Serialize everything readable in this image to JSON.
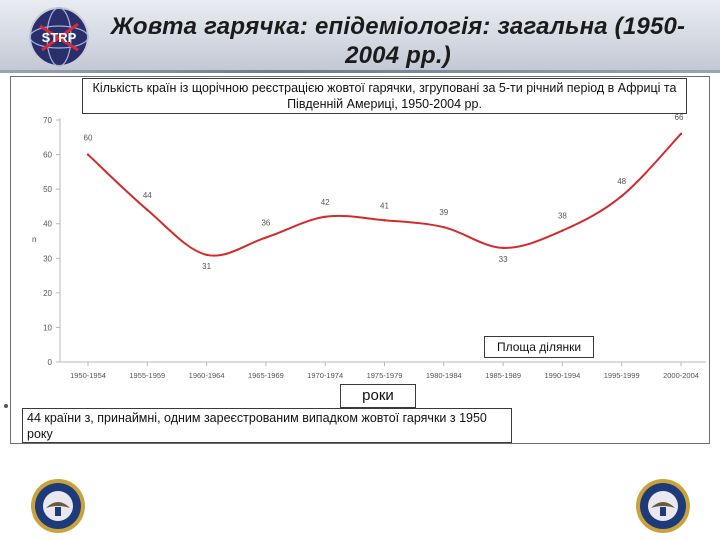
{
  "slide": {
    "title": "Жовта гарячка: епідеміологія: загальна (1950-2004 рр.)",
    "logo_text": "STRP"
  },
  "chart_data": {
    "type": "line",
    "title": "Кількість країн із щорічною реєстрацією жовтої гарячки, згруповані за 5-ти річний період в Африці та Південній Америці, 1950-2004 рр.",
    "xlabel": "роки",
    "ylabel": "n",
    "categories": [
      "1950-1954",
      "1955-1959",
      "1960-1964",
      "1965-1969",
      "1970-1974",
      "1975-1979",
      "1980-1984",
      "1985-1989",
      "1990-1994",
      "1995-1999",
      "2000-2004"
    ],
    "series": [
      {
        "values": [
          60,
          44,
          31,
          36,
          42,
          41,
          39,
          33,
          38,
          48,
          66
        ],
        "color": "#d42a2a"
      }
    ],
    "data_labels": [
      "60",
      "44",
      "31",
      "36",
      "42",
      "41",
      "39",
      "33",
      "38",
      "48",
      "66"
    ],
    "yticks": [
      "0",
      "10",
      "20",
      "30",
      "40",
      "50",
      "60",
      "70"
    ],
    "ylim": [
      0,
      70
    ],
    "grid": false,
    "legend": "none"
  },
  "boxes": {
    "plot_area_label": "Площа ділянки",
    "note": "44 країни з, принаймні, одним зареєстрованим випадком жовтої гарячки з 1950 року"
  }
}
